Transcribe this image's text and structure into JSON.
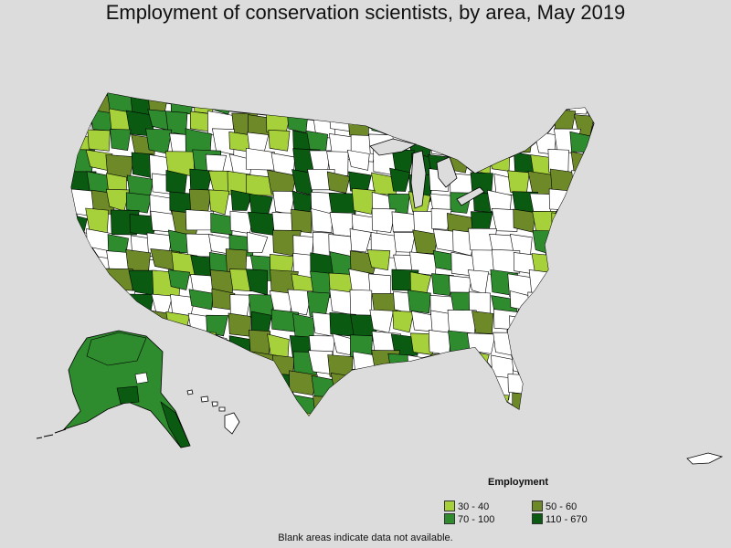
{
  "title": "Employment of conservation scientists, by area, May 2019",
  "legend": {
    "title": "Employment",
    "items": [
      {
        "label": "30 - 40",
        "color": "#a6d13a"
      },
      {
        "label": "50 - 60",
        "color": "#6e8a28"
      },
      {
        "label": "70 - 100",
        "color": "#2e8b2e"
      },
      {
        "label": "110 - 670",
        "color": "#0b5a12"
      }
    ]
  },
  "footnote": "Blank areas indicate data not available.",
  "colors": {
    "background": "#dcdcdc",
    "no_data": "#ffffff",
    "border": "#000000"
  }
}
